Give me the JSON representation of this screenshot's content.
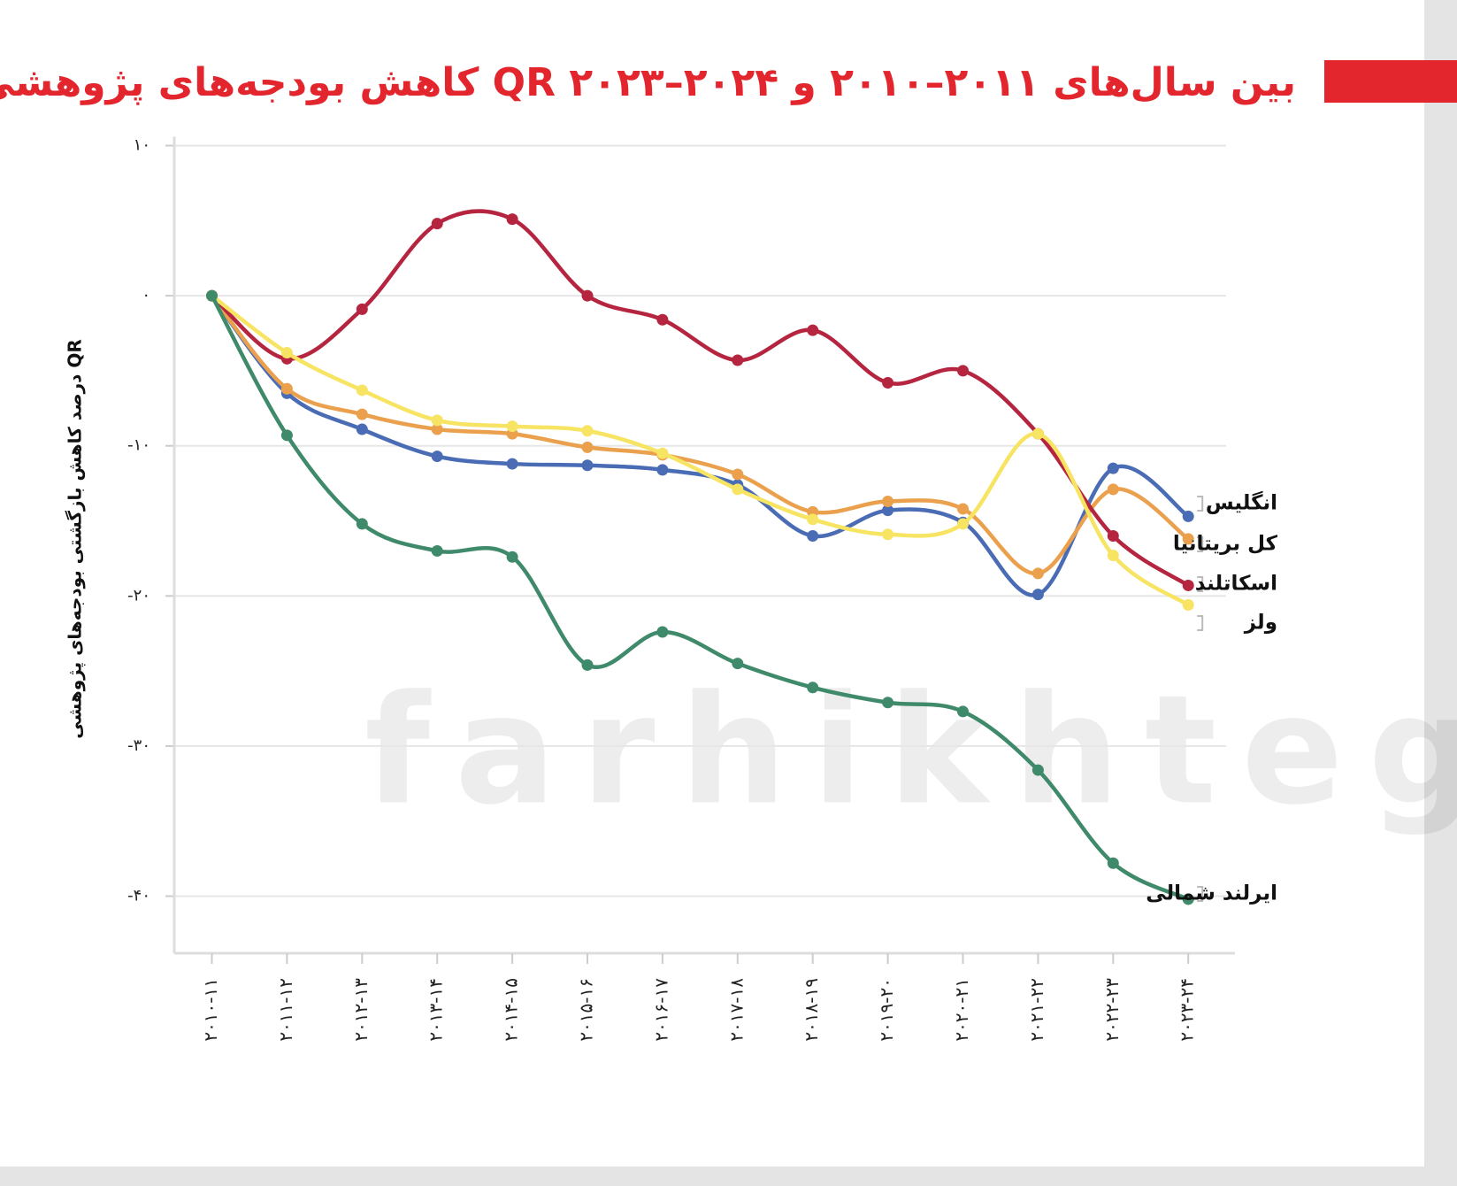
{
  "chart_data": {
    "type": "line",
    "title": "کاهش بودجه‌های پژوهشی QR بین سال‌های ۲۰۱۱–۲۰۱۰ و ۲۰۲۴–۲۰۲۳",
    "y_label": "درصد کاهش بازگشتی بودجه‌های پژوهشی QR",
    "watermark": "farhikhtegan",
    "categories": [
      "۲۰۱۰-۱۱",
      "۲۰۱۱-۱۲",
      "۲۰۱۲-۱۳",
      "۲۰۱۳-۱۴",
      "۲۰۱۴-۱۵",
      "۲۰۱۵-۱۶",
      "۲۰۱۶-۱۷",
      "۲۰۱۷-۱۸",
      "۲۰۱۸-۱۹",
      "۲۰۱۹-۲۰",
      "۲۰۲۰-۲۱",
      "۲۰۲۱-۲۲",
      "۲۰۲۲-۲۳",
      "۲۰۲۳-۲۴"
    ],
    "ylim": [
      -43.8,
      10.3
    ],
    "yticks": [
      {
        "value": 10,
        "label": "۱۰"
      },
      {
        "value": 0,
        "label": "۰"
      },
      {
        "value": -10,
        "label": "-۱۰"
      },
      {
        "value": -20,
        "label": "-۲۰"
      },
      {
        "value": -30,
        "label": "-۳۰"
      },
      {
        "value": -40,
        "label": "-۴۰"
      }
    ],
    "grid": true,
    "series": [
      {
        "name": "انگلیس",
        "color": "#4a6cb5",
        "values": [
          0,
          -6.5,
          -8.9,
          -10.7,
          -11.2,
          -11.3,
          -11.6,
          -12.6,
          -16.0,
          -14.3,
          -15.1,
          -19.9,
          -11.5,
          -14.7
        ]
      },
      {
        "name": "کل بریتانیا",
        "color": "#eaa04c",
        "values": [
          0,
          -6.2,
          -7.9,
          -8.9,
          -9.2,
          -10.1,
          -10.6,
          -11.9,
          -14.4,
          -13.7,
          -14.2,
          -18.5,
          -12.9,
          -16.2
        ]
      },
      {
        "name": "اسکاتلند",
        "color": "#b5253f",
        "values": [
          0,
          -4.2,
          -0.9,
          4.8,
          5.1,
          0,
          -1.6,
          -4.3,
          -2.3,
          -5.8,
          -5.0,
          -9.2,
          -16.0,
          -19.3
        ]
      },
      {
        "name": "ولز",
        "color": "#f7e463",
        "values": [
          0,
          -3.8,
          -6.3,
          -8.3,
          -8.7,
          -9.0,
          -10.5,
          -12.9,
          -14.9,
          -15.9,
          -15.2,
          -9.2,
          -17.3,
          -20.6
        ]
      },
      {
        "name": "ایرلند شمالی",
        "color": "#3f8a6a",
        "values": [
          0,
          -9.3,
          -15.2,
          -17.0,
          -17.4,
          -24.6,
          -22.4,
          -24.5,
          -26.1,
          -27.1,
          -27.7,
          -31.6,
          -37.8,
          -40.2
        ]
      }
    ]
  }
}
